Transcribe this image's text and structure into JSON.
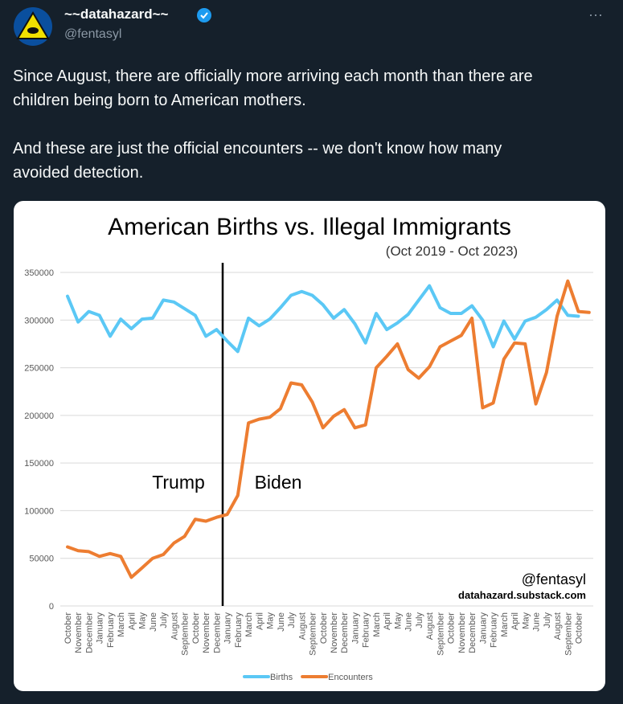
{
  "tweet": {
    "author": {
      "name": "~~datahazard~~",
      "handle": "@fentasyl"
    },
    "text": [
      [
        "Since August, there are officially more arriving each month than there are",
        "children being born to American mothers."
      ],
      [
        "And these are just the official encounters -- we don't know how many",
        "avoided detection."
      ]
    ]
  },
  "chart_data": {
    "type": "line",
    "title": "American Births vs. Illegal Immigrants",
    "subtitle": "(Oct 2019 - Oct 2023)",
    "annotations": [
      "Trump",
      "Biden",
      "@fentasyl",
      "datahazard.substack.com"
    ],
    "categories": [
      "October",
      "November",
      "December",
      "January",
      "February",
      "March",
      "April",
      "May",
      "June",
      "July",
      "August",
      "September",
      "October",
      "November",
      "December",
      "January",
      "February",
      "March",
      "April",
      "May",
      "June",
      "July",
      "August",
      "September",
      "October",
      "November",
      "December",
      "January",
      "February",
      "March",
      "April",
      "May",
      "June",
      "July",
      "August",
      "September",
      "October",
      "November",
      "December",
      "January",
      "February",
      "March",
      "April",
      "May",
      "June",
      "July",
      "August",
      "September",
      "October",
      null
    ],
    "series": [
      {
        "name": "Births",
        "color": "#5bc8f5",
        "values": [
          325000,
          298000,
          309000,
          305000,
          283000,
          301000,
          291000,
          301000,
          302000,
          321000,
          319000,
          312000,
          305000,
          283000,
          290000,
          278000,
          267000,
          302000,
          294000,
          301000,
          313000,
          326000,
          330000,
          326000,
          316000,
          302000,
          311000,
          296000,
          276000,
          307000,
          290000,
          297000,
          306000,
          321000,
          336000,
          313000,
          307000,
          307000,
          315000,
          300000,
          272000,
          299000,
          280000,
          299000,
          303000,
          311000,
          321000,
          305000,
          304000,
          null
        ]
      },
      {
        "name": "Encounters",
        "color": "#ed7d31",
        "values": [
          62000,
          58000,
          57000,
          52000,
          55000,
          52000,
          30000,
          40000,
          50000,
          54000,
          66000,
          73000,
          91000,
          89000,
          93000,
          96000,
          116000,
          192000,
          196000,
          198000,
          207000,
          234000,
          232000,
          214000,
          187000,
          199000,
          206000,
          187000,
          190000,
          250000,
          262000,
          275000,
          248000,
          239000,
          251000,
          272000,
          278000,
          284000,
          302000,
          208000,
          213000,
          259000,
          276000,
          275000,
          212000,
          245000,
          304000,
          341000,
          309000,
          308000
        ]
      }
    ],
    "ylim": [
      0,
      350000
    ],
    "yticks": [
      0,
      50000,
      100000,
      150000,
      200000,
      250000,
      300000,
      350000
    ],
    "grid": true,
    "legend": "bottom"
  }
}
